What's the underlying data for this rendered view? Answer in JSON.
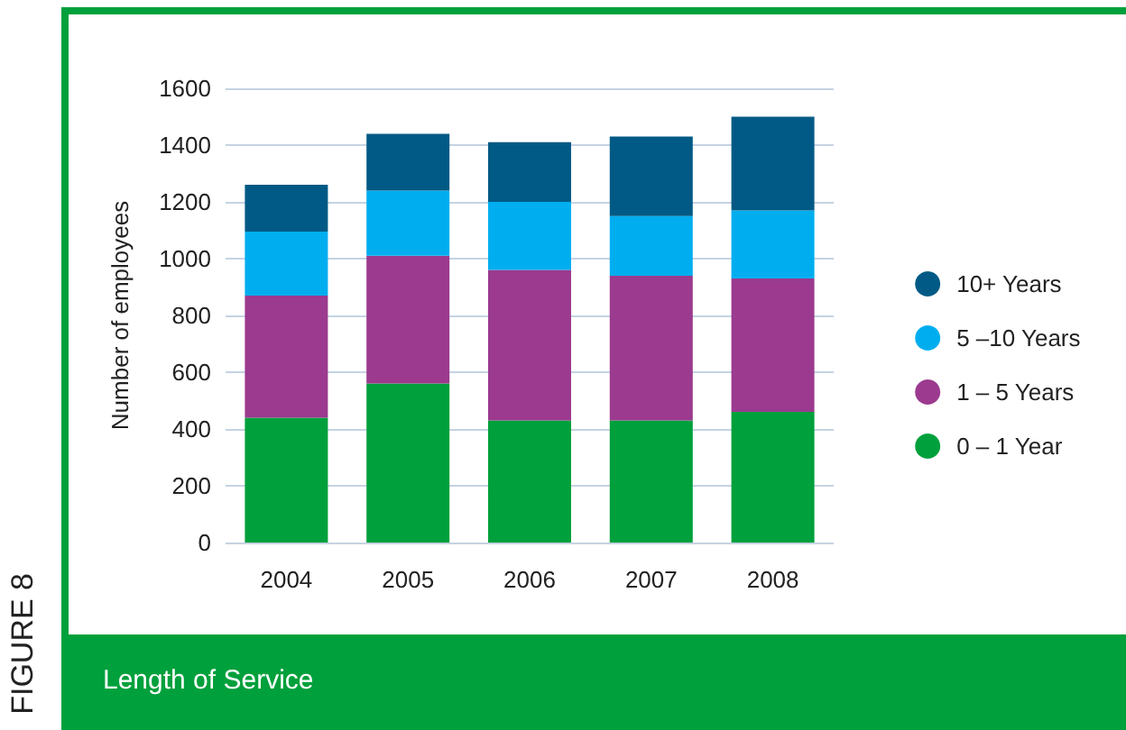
{
  "chart_data": {
    "type": "bar",
    "stacked": true,
    "title": "Length of Service",
    "ylabel": "Number of employees",
    "annotations": [
      "FIGURE 8"
    ],
    "categories": [
      "2004",
      "2005",
      "2006",
      "2007",
      "2008"
    ],
    "series": [
      {
        "name": "0 – 1 Year",
        "color": "#00a03c",
        "values": [
          440,
          560,
          430,
          430,
          460
        ]
      },
      {
        "name": "1 – 5 Years",
        "color": "#9b3a8e",
        "values": [
          430,
          450,
          530,
          510,
          470
        ]
      },
      {
        "name": "5 –10 Years",
        "color": "#00aeef",
        "values": [
          225,
          230,
          240,
          210,
          240
        ]
      },
      {
        "name": "10+ Years",
        "color": "#005a85",
        "values": [
          165,
          200,
          210,
          280,
          330
        ]
      }
    ],
    "ylim": [
      0,
      1600
    ],
    "yticks": [
      0,
      200,
      400,
      600,
      800,
      1000,
      1200,
      1400,
      1600
    ],
    "grid": "y",
    "legend": "right"
  }
}
